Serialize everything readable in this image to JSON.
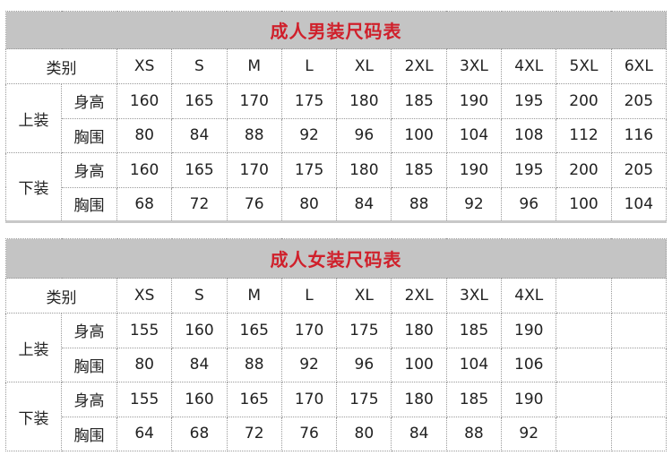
{
  "men": {
    "title": "成人男装尺码表",
    "category_label": "类别",
    "sizes": [
      "XS",
      "S",
      "M",
      "L",
      "XL",
      "2XL",
      "3XL",
      "4XL",
      "5XL",
      "6XL"
    ],
    "groups": [
      {
        "label": "上装",
        "rows": [
          {
            "label": "身高",
            "values": [
              "160",
              "165",
              "170",
              "175",
              "180",
              "185",
              "190",
              "195",
              "200",
              "205"
            ]
          },
          {
            "label": "胸围",
            "values": [
              "80",
              "84",
              "88",
              "92",
              "96",
              "100",
              "104",
              "108",
              "112",
              "116"
            ]
          }
        ]
      },
      {
        "label": "下装",
        "rows": [
          {
            "label": "身高",
            "values": [
              "160",
              "165",
              "170",
              "175",
              "180",
              "185",
              "190",
              "195",
              "200",
              "205"
            ]
          },
          {
            "label": "胸围",
            "values": [
              "68",
              "72",
              "76",
              "80",
              "84",
              "88",
              "92",
              "96",
              "100",
              "104"
            ]
          }
        ]
      }
    ]
  },
  "women": {
    "title": "成人女装尺码表",
    "category_label": "类别",
    "sizes": [
      "XS",
      "S",
      "M",
      "L",
      "XL",
      "2XL",
      "3XL",
      "4XL",
      "",
      ""
    ],
    "groups": [
      {
        "label": "上装",
        "rows": [
          {
            "label": "身高",
            "values": [
              "155",
              "160",
              "165",
              "170",
              "175",
              "180",
              "185",
              "190",
              "",
              ""
            ]
          },
          {
            "label": "胸围",
            "values": [
              "80",
              "84",
              "88",
              "92",
              "96",
              "100",
              "104",
              "106",
              "",
              ""
            ]
          }
        ]
      },
      {
        "label": "下装",
        "rows": [
          {
            "label": "身高",
            "values": [
              "155",
              "160",
              "165",
              "170",
              "175",
              "180",
              "185",
              "190",
              "",
              ""
            ]
          },
          {
            "label": "胸围",
            "values": [
              "64",
              "68",
              "72",
              "76",
              "80",
              "84",
              "88",
              "92",
              "",
              ""
            ]
          }
        ]
      }
    ]
  },
  "colors": {
    "title_text": "#d0202b",
    "title_bg": "#c4c4c4"
  }
}
